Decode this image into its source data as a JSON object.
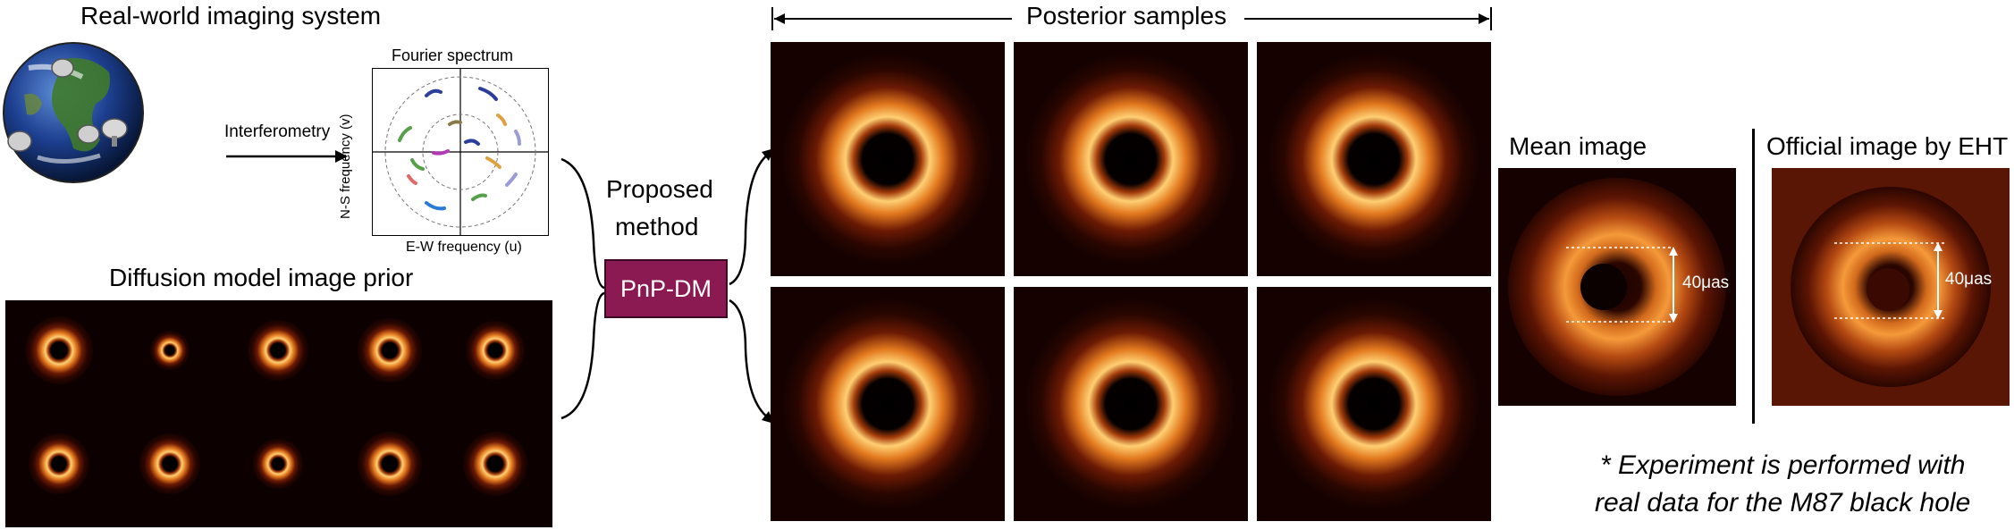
{
  "left": {
    "real_world_title": "Real-world imaging system",
    "interferometry_label": "Interferometry",
    "diffusion_title": "Diffusion model image prior"
  },
  "fourier": {
    "title": "Fourier spectrum",
    "xlabel": "E-W frequency (u)",
    "ylabel": "N-S frequency (v)"
  },
  "method": {
    "line1": "Proposed",
    "line2": "method",
    "box_label": "PnP-DM"
  },
  "posterior": {
    "title": "Posterior samples"
  },
  "mean": {
    "title": "Mean image",
    "scale_label": "40μas"
  },
  "official": {
    "title": "Official image by EHT",
    "scale_label": "40μas"
  },
  "note": {
    "line1": "* Experiment is performed with",
    "line2": "real data for the M87 black hole"
  },
  "colors": {
    "pnp_box": "#8b1a52",
    "ring_glow": "#ffd27a",
    "background_dark": "#150200"
  }
}
